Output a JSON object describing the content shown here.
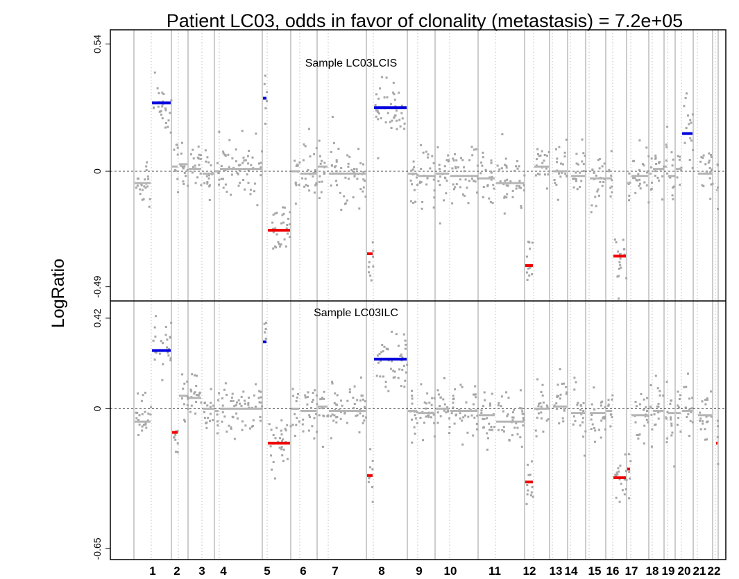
{
  "chart_data": {
    "type": "scatter",
    "title": "Patient LC03, odds in favor of clonality (metastasis) = 7.2e+05",
    "ylabel": "LogRatio",
    "xlabel": "",
    "chromosome_labels": [
      "1",
      "2",
      "3",
      "4",
      "5",
      "6",
      "7",
      "8",
      "9",
      "10",
      "11",
      "12",
      "13",
      "14",
      "15",
      "16",
      "17",
      "18",
      "19",
      "20",
      "21",
      "22"
    ],
    "grid": "vertical chromosome boundaries (solid) and centromeres (dotted)",
    "colors": {
      "points": "#a6a6a6",
      "gain": "#0000dd",
      "loss": "#ee0000",
      "axis": "#000000"
    },
    "panels": [
      {
        "label": "Sample LC03LCIS",
        "ylim": [
          -0.55,
          0.6
        ],
        "yticks": [
          {
            "value": 0.54,
            "label": "0.54"
          },
          {
            "value": 0,
            "label": "0"
          },
          {
            "value": -0.49,
            "label": "-0.49"
          }
        ],
        "segments": [
          {
            "chrom": 1,
            "arm": "q",
            "value": 0.29,
            "type": "gain"
          },
          {
            "chrom": 5,
            "arm": "p",
            "value": 0.31,
            "type": "gain"
          },
          {
            "chrom": 5,
            "arm": "q",
            "value": -0.25,
            "type": "loss"
          },
          {
            "chrom": 8,
            "arm": "p",
            "value": -0.35,
            "type": "loss"
          },
          {
            "chrom": 8,
            "arm": "q",
            "value": 0.27,
            "type": "gain"
          },
          {
            "chrom": 12,
            "arm": "p",
            "value": -0.4,
            "type": "loss"
          },
          {
            "chrom": 16,
            "arm": "q",
            "value": -0.36,
            "type": "loss"
          },
          {
            "chrom": 20,
            "arm": "q",
            "value": 0.16,
            "type": "gain"
          }
        ],
        "arm_means": [
          {
            "chrom": 1,
            "arm": "p",
            "value": -0.05
          },
          {
            "chrom": 2,
            "arm": "p",
            "value": 0.02
          },
          {
            "chrom": 2,
            "arm": "q",
            "value": 0.03
          },
          {
            "chrom": 3,
            "arm": "p",
            "value": 0.01
          },
          {
            "chrom": 3,
            "arm": "q",
            "value": -0.01
          },
          {
            "chrom": 4,
            "arm": "p",
            "value": 0.0
          },
          {
            "chrom": 4,
            "arm": "q",
            "value": 0.01
          },
          {
            "chrom": 6,
            "arm": "p",
            "value": 0.0
          },
          {
            "chrom": 6,
            "arm": "q",
            "value": -0.01
          },
          {
            "chrom": 7,
            "arm": "p",
            "value": 0.02
          },
          {
            "chrom": 7,
            "arm": "q",
            "value": -0.01
          },
          {
            "chrom": 9,
            "arm": "p",
            "value": -0.01
          },
          {
            "chrom": 9,
            "arm": "q",
            "value": -0.02
          },
          {
            "chrom": 10,
            "arm": "p",
            "value": -0.01
          },
          {
            "chrom": 10,
            "arm": "q",
            "value": -0.02
          },
          {
            "chrom": 11,
            "arm": "p",
            "value": -0.03
          },
          {
            "chrom": 11,
            "arm": "q",
            "value": -0.05
          },
          {
            "chrom": 12,
            "arm": "q",
            "value": 0.02
          },
          {
            "chrom": 13,
            "arm": "q",
            "value": 0.0
          },
          {
            "chrom": 14,
            "arm": "q",
            "value": -0.02
          },
          {
            "chrom": 15,
            "arm": "q",
            "value": -0.03
          },
          {
            "chrom": 16,
            "arm": "p",
            "value": -0.03
          },
          {
            "chrom": 17,
            "arm": "p",
            "value": -0.05
          },
          {
            "chrom": 17,
            "arm": "q",
            "value": -0.02
          },
          {
            "chrom": 18,
            "arm": "p",
            "value": -0.01
          },
          {
            "chrom": 18,
            "arm": "q",
            "value": 0.01
          },
          {
            "chrom": 19,
            "arm": "p",
            "value": 0.02
          },
          {
            "chrom": 19,
            "arm": "q",
            "value": -0.02
          },
          {
            "chrom": 20,
            "arm": "p",
            "value": 0.01
          },
          {
            "chrom": 21,
            "arm": "q",
            "value": -0.01
          },
          {
            "chrom": 22,
            "arm": "q",
            "value": -0.08
          }
        ]
      },
      {
        "label": "Sample LC03ILC",
        "ylim": [
          -0.7,
          0.5
        ],
        "yticks": [
          {
            "value": 0.42,
            "label": "0.42"
          },
          {
            "value": 0,
            "label": "0"
          },
          {
            "value": -0.65,
            "label": "-0.65"
          }
        ],
        "segments": [
          {
            "chrom": 1,
            "arm": "q",
            "value": 0.27,
            "type": "gain"
          },
          {
            "chrom": 2,
            "arm": "p",
            "value": -0.11,
            "type": "loss"
          },
          {
            "chrom": 5,
            "arm": "p",
            "value": 0.31,
            "type": "gain"
          },
          {
            "chrom": 5,
            "arm": "q",
            "value": -0.16,
            "type": "loss"
          },
          {
            "chrom": 8,
            "arm": "p",
            "value": -0.31,
            "type": "loss"
          },
          {
            "chrom": 8,
            "arm": "q",
            "value": 0.23,
            "type": "gain"
          },
          {
            "chrom": 12,
            "arm": "p",
            "value": -0.34,
            "type": "loss"
          },
          {
            "chrom": 16,
            "arm": "q",
            "value": -0.32,
            "type": "loss"
          },
          {
            "chrom": 17,
            "arm": "p",
            "value": -0.28,
            "type": "loss"
          },
          {
            "chrom": 22,
            "arm": "q",
            "value": -0.16,
            "type": "loss"
          }
        ],
        "arm_means": [
          {
            "chrom": 1,
            "arm": "p",
            "value": -0.06
          },
          {
            "chrom": 2,
            "arm": "q",
            "value": 0.06
          },
          {
            "chrom": 3,
            "arm": "p",
            "value": 0.05
          },
          {
            "chrom": 3,
            "arm": "q",
            "value": 0.0
          },
          {
            "chrom": 4,
            "arm": "p",
            "value": -0.01
          },
          {
            "chrom": 4,
            "arm": "q",
            "value": 0.0
          },
          {
            "chrom": 6,
            "arm": "p",
            "value": 0.0
          },
          {
            "chrom": 6,
            "arm": "q",
            "value": -0.01
          },
          {
            "chrom": 7,
            "arm": "p",
            "value": 0.01
          },
          {
            "chrom": 7,
            "arm": "q",
            "value": -0.01
          },
          {
            "chrom": 9,
            "arm": "p",
            "value": -0.01
          },
          {
            "chrom": 9,
            "arm": "q",
            "value": -0.02
          },
          {
            "chrom": 10,
            "arm": "p",
            "value": 0.0
          },
          {
            "chrom": 10,
            "arm": "q",
            "value": -0.01
          },
          {
            "chrom": 11,
            "arm": "p",
            "value": -0.03
          },
          {
            "chrom": 11,
            "arm": "q",
            "value": -0.06
          },
          {
            "chrom": 12,
            "arm": "q",
            "value": 0.0
          },
          {
            "chrom": 13,
            "arm": "q",
            "value": 0.01
          },
          {
            "chrom": 14,
            "arm": "q",
            "value": -0.02
          },
          {
            "chrom": 15,
            "arm": "q",
            "value": -0.02
          },
          {
            "chrom": 16,
            "arm": "p",
            "value": -0.01
          },
          {
            "chrom": 17,
            "arm": "q",
            "value": -0.03
          },
          {
            "chrom": 18,
            "arm": "p",
            "value": 0.01
          },
          {
            "chrom": 18,
            "arm": "q",
            "value": -0.01
          },
          {
            "chrom": 19,
            "arm": "p",
            "value": -0.04
          },
          {
            "chrom": 19,
            "arm": "q",
            "value": -0.02
          },
          {
            "chrom": 20,
            "arm": "p",
            "value": -0.02
          },
          {
            "chrom": 20,
            "arm": "q",
            "value": -0.01
          },
          {
            "chrom": 21,
            "arm": "q",
            "value": -0.03
          }
        ]
      }
    ]
  }
}
